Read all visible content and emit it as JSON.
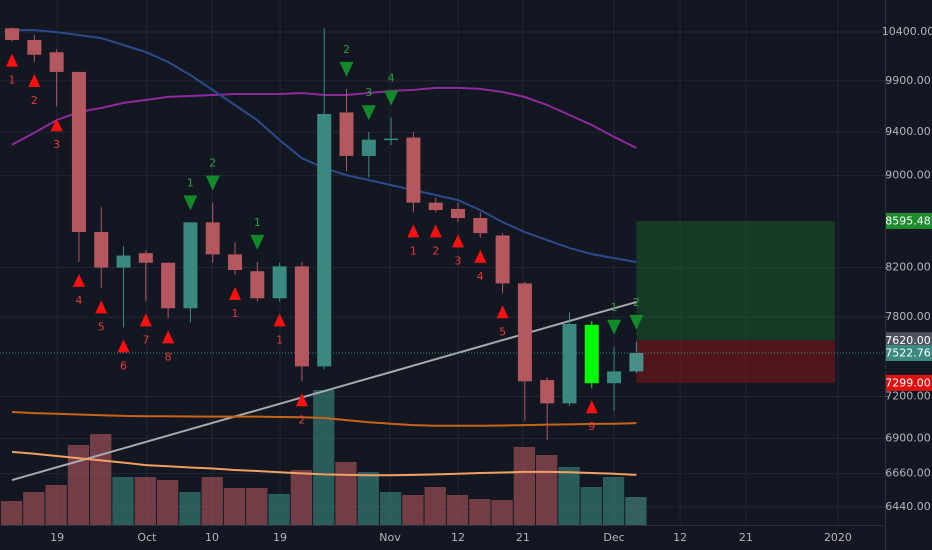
{
  "chart_data": {
    "type": "candlestick",
    "log_scale": true,
    "grid": true,
    "background": "#131722",
    "categories": [
      null,
      null,
      null,
      null,
      null,
      null,
      null,
      null,
      null,
      null,
      null,
      null,
      null,
      null,
      null,
      null,
      null,
      null,
      null,
      null,
      null,
      null,
      null,
      null,
      null,
      null,
      null,
      null,
      null
    ],
    "open": [
      10440,
      10317,
      10190,
      9990,
      8500,
      8200,
      8320,
      8240,
      7870,
      8583,
      8310,
      8170,
      7950,
      8210,
      7422,
      9590,
      9178,
      9330,
      9350,
      8755,
      8700,
      8620,
      8470,
      8070,
      7320,
      7150,
      7297,
      7297,
      7384
    ],
    "high": [
      10450,
      10370,
      10220,
      9990,
      8715,
      8380,
      8345,
      8240,
      8583,
      8755,
      8413,
      8247,
      8240,
      8247,
      10440,
      9820,
      9400,
      9540,
      9400,
      8800,
      8755,
      8670,
      8490,
      8085,
      7340,
      7838,
      7770,
      7570,
      7608
    ],
    "low": [
      10300,
      10090,
      9650,
      8247,
      8030,
      7720,
      7925,
      7790,
      7760,
      8240,
      8140,
      7925,
      7925,
      7311,
      7400,
      9040,
      8980,
      9280,
      8670,
      8670,
      8583,
      8450,
      7990,
      7025,
      6890,
      7130,
      7260,
      7096,
      7370
    ],
    "close": [
      10317,
      10165,
      9990,
      8500,
      8200,
      8300,
      8240,
      7870,
      8583,
      8310,
      8180,
      7950,
      8210,
      7422,
      9575,
      9178,
      9330,
      9340,
      8755,
      8690,
      8620,
      8490,
      8070,
      7311,
      7150,
      7746,
      7740,
      7384,
      7522.76
    ],
    "colors": [
      "#b4575f",
      "#b4575f",
      "#b4575f",
      "#b4575f",
      "#b4575f",
      "#3b8a82",
      "#b4575f",
      "#b4575f",
      "#3b8a82",
      "#b4575f",
      "#b4575f",
      "#b4575f",
      "#3b8a82",
      "#b4575f",
      "#3b8a82",
      "#b4575f",
      "#3b8a82",
      "#3b8a82",
      "#b4575f",
      "#b4575f",
      "#b4575f",
      "#b4575f",
      "#b4575f",
      "#b4575f",
      "#b4575f",
      "#3b8a82",
      "#00ff00",
      "#3b8a82",
      "#4a8f8a"
    ],
    "volume": [
      48,
      66,
      80,
      160,
      182,
      96,
      96,
      90,
      66,
      96,
      74,
      74,
      62,
      110,
      270,
      126,
      106,
      66,
      60,
      76,
      60,
      52,
      50,
      156,
      140,
      116,
      76,
      96,
      56
    ],
    "volume_lim": [
      0,
      500
    ],
    "series": [
      {
        "color": "#8e2a9e",
        "values": [
          9282,
          9395,
          9516,
          9594,
          9633,
          9682,
          9711,
          9741,
          9750,
          9760,
          9770,
          9770,
          9770,
          9780,
          9760,
          9760,
          9780,
          9800,
          9810,
          9830,
          9830,
          9820,
          9790,
          9740,
          9662,
          9565,
          9469,
          9356,
          9252
        ]
      },
      {
        "color": "#2b4a8c",
        "values": [
          10421,
          10421,
          10400,
          10369,
          10337,
          10264,
          10192,
          10090,
          9958,
          9809,
          9661,
          9515,
          9326,
          9158,
          9066,
          9002,
          8957,
          8912,
          8867,
          8823,
          8778,
          8690,
          8585,
          8499,
          8430,
          8363,
          8312,
          8279,
          8246
        ]
      },
      {
        "color": "#a9aab0",
        "values": [
          6617,
          6660,
          6703,
          6746,
          6789,
          6833,
          6877,
          6921,
          6966,
          7011,
          7056,
          7101,
          7147,
          7193,
          7239,
          7286,
          7333,
          7380,
          7428,
          7476,
          7524,
          7572,
          7621,
          7670,
          7720,
          7770,
          7820,
          7870,
          7920
        ]
      },
      {
        "color": "#c8641a",
        "values": [
          7088,
          7080,
          7075,
          7070,
          7065,
          7060,
          7058,
          7058,
          7056,
          7055,
          7055,
          7055,
          7052,
          7050,
          7045,
          7030,
          7015,
          7005,
          6995,
          6990,
          6990,
          6990,
          6992,
          6995,
          6998,
          7000,
          7003,
          7005,
          7009
        ]
      },
      {
        "color": "#f0a060",
        "values": [
          6808,
          6795,
          6780,
          6765,
          6750,
          6735,
          6718,
          6710,
          6702,
          6695,
          6685,
          6678,
          6670,
          6662,
          6655,
          6652,
          6650,
          6650,
          6652,
          6655,
          6660,
          6665,
          6668,
          6672,
          6672,
          6670,
          6665,
          6660,
          6652
        ]
      }
    ],
    "ylim": [
      6324,
      10742
    ],
    "yticks": [
      {
        "value": 10400,
        "label": "10400.00"
      },
      {
        "value": 9900,
        "label": "9900.00"
      },
      {
        "value": 9400,
        "label": "9400.00"
      },
      {
        "value": 9000,
        "label": "9000.00"
      },
      {
        "value": 8200,
        "label": "8200.00"
      },
      {
        "value": 7800,
        "label": "7800.00"
      },
      {
        "value": 7200,
        "label": "7200.00"
      },
      {
        "value": 6900,
        "label": "6900.00"
      },
      {
        "value": 6660,
        "label": "6660.00"
      },
      {
        "value": 6440,
        "label": "6440.00"
      }
    ],
    "xlim": [
      -0.54,
      39.15
    ],
    "xticks": [
      {
        "value": 2.02,
        "label": "19"
      },
      {
        "value": 6.05,
        "label": "Oct"
      },
      {
        "value": 8.97,
        "label": "10"
      },
      {
        "value": 12.02,
        "label": "19"
      },
      {
        "value": 16.95,
        "label": "Nov"
      },
      {
        "value": 20.0,
        "label": "12"
      },
      {
        "value": 22.91,
        "label": "21"
      },
      {
        "value": 27.0,
        "label": "Dec"
      },
      {
        "value": 29.96,
        "label": "12"
      },
      {
        "value": 32.91,
        "label": "21"
      },
      {
        "value": 37.04,
        "label": "2020"
      }
    ],
    "price_labels": [
      {
        "value": 8595.48,
        "label": "8595.48",
        "color": "#1e8c2e"
      },
      {
        "value": 7620,
        "label": "7620.00",
        "color": "#50535e"
      },
      {
        "value": 7522.76,
        "label": "7522.76",
        "color": "#3b8a82"
      },
      {
        "value": 7299,
        "label": "7299.00",
        "color": "#e01010"
      }
    ],
    "buy_signals": [
      {
        "x": 0,
        "label": "1"
      },
      {
        "x": 1,
        "label": "2"
      },
      {
        "x": 2,
        "label": "3"
      },
      {
        "x": 3,
        "label": "4"
      },
      {
        "x": 4,
        "label": "5"
      },
      {
        "x": 5,
        "label": "6"
      },
      {
        "x": 6,
        "label": "7"
      },
      {
        "x": 7,
        "label": "8"
      },
      {
        "x": 10,
        "label": "1"
      },
      {
        "x": 12,
        "label": "1"
      },
      {
        "x": 13,
        "label": "2"
      },
      {
        "x": 18,
        "label": "1"
      },
      {
        "x": 19,
        "label": "2"
      },
      {
        "x": 20,
        "label": "3"
      },
      {
        "x": 21,
        "label": "4"
      },
      {
        "x": 22,
        "label": "5"
      },
      {
        "x": 26,
        "label": "9"
      }
    ],
    "sell_signals": [
      {
        "x": 8,
        "label": "1"
      },
      {
        "x": 9,
        "label": "2"
      },
      {
        "x": 11,
        "label": "1"
      },
      {
        "x": 15,
        "label": "2"
      },
      {
        "x": 16,
        "label": "3"
      },
      {
        "x": 17,
        "label": "4"
      },
      {
        "x": 27,
        "label": "1"
      },
      {
        "x": 28,
        "label": "2"
      }
    ]
  }
}
